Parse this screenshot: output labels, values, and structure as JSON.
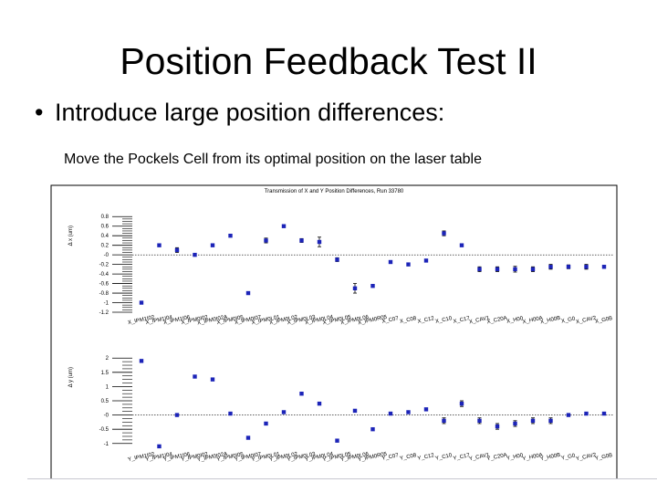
{
  "slide": {
    "title": "Position Feedback Test II",
    "bullet": "Introduce large position differences:",
    "subtext": "Move the Pockels Cell from its optimal position on the laser table"
  },
  "chart_data": [
    {
      "type": "scatter",
      "title": "Transmission of X and Y Position Differences, Run 33780",
      "xlabel": "",
      "ylabel": "Δ x (um)",
      "ylim": [
        -1.2,
        0.9
      ],
      "yticks": [
        0.8,
        0.6,
        0.4,
        0.2,
        0,
        -0.2,
        -0.4,
        -0.6,
        -0.8,
        -1,
        -1.2
      ],
      "ytick_labels": [
        "0.8",
        "0.6",
        "0.4",
        "0.2",
        "-0",
        "-0.2",
        "-0.4",
        "-0.6",
        "-0.8",
        "-1",
        "-1.2"
      ],
      "categories": [
        "X_IPM1I02",
        "X_IPM1I04",
        "X_IPM1I06",
        "X_IPM0I02",
        "X_IPM0I02A",
        "X_IPM0I05",
        "X_IPM0I07",
        "X_IPM0L01",
        "X_IPM0L02",
        "X_IPM0L03",
        "X_IPM0L04",
        "X_IPM0L05",
        "X_IPM0L06",
        "X_IPM0R05",
        "X_C07",
        "X_C08",
        "X_C12",
        "X_C10",
        "X_C17",
        "X_CAV1",
        "X_C20A",
        "X_H00",
        "X_H00A",
        "X_H00B",
        "X_G0",
        "X_CAV2",
        "X_G0B"
      ],
      "tick_labels": [
        "X_IPM1I02",
        "X_IPM1I04",
        "X_IPM1I06",
        "X_IPM0I02",
        "X_IPM0I02A",
        "X_IPM0I05",
        "X_IPM0I07",
        "X_IPM0L01",
        "X_IPM0L02",
        "X_IPM0L03",
        "X_IPM0L04",
        "X_IPM0L05",
        "X_IPM0L06",
        "X_IPM0R05",
        "X_C07",
        "X_C08",
        "X_C12",
        "X_C10",
        "X_C17",
        "X_CAV1",
        "X_C20A",
        "X_H00",
        "X_H00A",
        "X_H00B",
        "X_G0",
        "X_CAV2",
        "X_G0B"
      ],
      "values": [
        -1.0,
        0.2,
        0.1,
        0.0,
        0.2,
        0.4,
        -0.8,
        0.3,
        0.6,
        0.3,
        0.27,
        -0.1,
        -0.7,
        -0.65,
        -0.15,
        -0.2,
        -0.12,
        0.45,
        0.2,
        -0.3,
        -0.3,
        -0.3,
        -0.3,
        -0.25,
        -0.25,
        -0.25,
        -0.25
      ],
      "errors": [
        0,
        0,
        0.05,
        0,
        0,
        0,
        0,
        0.05,
        0,
        0.04,
        0.1,
        0.04,
        0.1,
        0,
        0,
        0.03,
        0,
        0.05,
        0,
        0.05,
        0.05,
        0.06,
        0.05,
        0.05,
        0.04,
        0.05,
        0.03
      ],
      "grid": false,
      "color": "#1c24b8"
    },
    {
      "type": "scatter",
      "title": "",
      "xlabel": "",
      "ylabel": "Δ y (um)",
      "ylim": [
        -1.2,
        2.2
      ],
      "yticks": [
        2,
        1.5,
        1,
        0.5,
        0,
        -0.5,
        -1
      ],
      "ytick_labels": [
        "2",
        "1.5",
        "1",
        "0.5",
        "-0",
        "-0.5",
        "-1"
      ],
      "categories": [
        "Y_IPM1I02",
        "Y_IPM1I04",
        "Y_IPM1I06",
        "Y_IPM0I02",
        "Y_IPM0I02A",
        "Y_IPM0I05",
        "Y_IPM0I07",
        "Y_IPM0L01",
        "Y_IPM0L02",
        "Y_IPM0L03",
        "Y_IPM0L04",
        "Y_IPM0L05",
        "Y_IPM0L06",
        "Y_IPM0R05",
        "Y_C07",
        "Y_C08",
        "Y_C12",
        "Y_C10",
        "Y_C17",
        "Y_CAV1",
        "Y_C20A",
        "Y_H00",
        "Y_H00A",
        "Y_H00B",
        "Y_G0",
        "Y_CAV2",
        "Y_G0B"
      ],
      "tick_labels": [
        "Y_IPM1I02",
        "Y_IPM1I04",
        "Y_IPM1I06",
        "Y_IPM0I02",
        "Y_IPM0I02A",
        "Y_IPM0I05",
        "Y_IPM0I07",
        "Y_IPM0L01",
        "Y_IPM0L02",
        "Y_IPM0L03",
        "Y_IPM0L04",
        "Y_IPM0L05",
        "Y_IPM0L06",
        "Y_IPM0R05",
        "Y_C07",
        "Y_C08",
        "Y_C12",
        "Y_C10",
        "Y_C17",
        "Y_CAV1",
        "Y_C20A",
        "Y_H00",
        "Y_H00A",
        "Y_H00B",
        "Y_G0",
        "Y_CAV2",
        "Y_G0B"
      ],
      "values": [
        1.9,
        -1.1,
        0,
        1.35,
        1.25,
        0.05,
        -0.8,
        -0.3,
        0.1,
        0.75,
        0.4,
        -0.9,
        0.15,
        -0.5,
        0.05,
        0.1,
        0.2,
        -0.2,
        0.4,
        -0.2,
        -0.4,
        -0.3,
        -0.2,
        -0.2,
        0.0,
        0.05,
        0.05
      ],
      "errors": [
        0,
        0,
        0,
        0,
        0,
        0,
        0,
        0,
        0,
        0,
        0,
        0.05,
        0,
        0,
        0,
        0,
        0,
        0.1,
        0.1,
        0.1,
        0.1,
        0.1,
        0.1,
        0.1,
        0,
        0,
        0
      ],
      "grid": false,
      "color": "#1c24b8"
    }
  ]
}
